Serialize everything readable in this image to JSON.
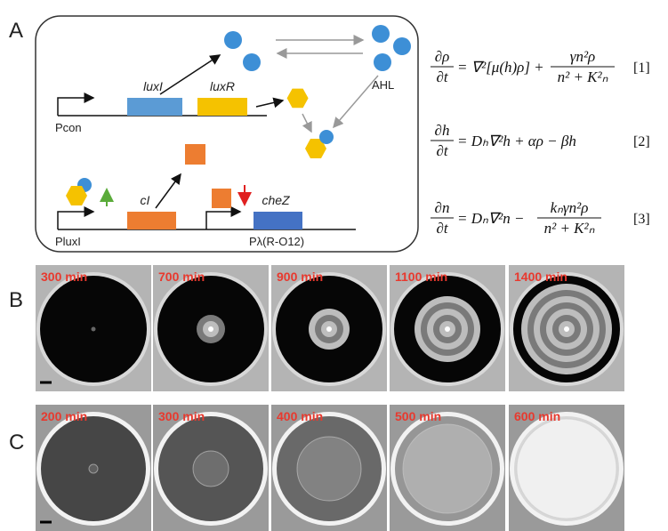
{
  "panel_labels": {
    "a": "A",
    "b": "B",
    "c": "C"
  },
  "diagram": {
    "genes": [
      "luxI",
      "luxR",
      "cI",
      "cheZ"
    ],
    "promoters": [
      "Pcon",
      "PluxI",
      "Pλ(R-O12)"
    ],
    "signal": "AHL"
  },
  "equations": [
    {
      "lhs_num": "∂ρ",
      "lhs_den": "∂t",
      "rhs": "= ∇²[μ(h)ρ] +",
      "frac_num": "γn²ρ",
      "frac_den": "n² + K²ₙ",
      "tag": "[1]"
    },
    {
      "lhs_num": "∂h",
      "lhs_den": "∂t",
      "rhs": "= Dₕ∇²h + αρ − βh",
      "tag": "[2]"
    },
    {
      "lhs_num": "∂n",
      "lhs_den": "∂t",
      "rhs": "= Dₙ∇²n −",
      "frac_num": "kₙγn²ρ",
      "frac_den": "n² + K²ₙ",
      "tag": "[3]"
    }
  ],
  "rows": [
    {
      "times": [
        "300 min",
        "700 min",
        "900 min",
        "1100 min",
        "1400 min"
      ]
    },
    {
      "times": [
        "200 min",
        "300 min",
        "400 min",
        "500 min",
        "600 min"
      ]
    }
  ]
}
